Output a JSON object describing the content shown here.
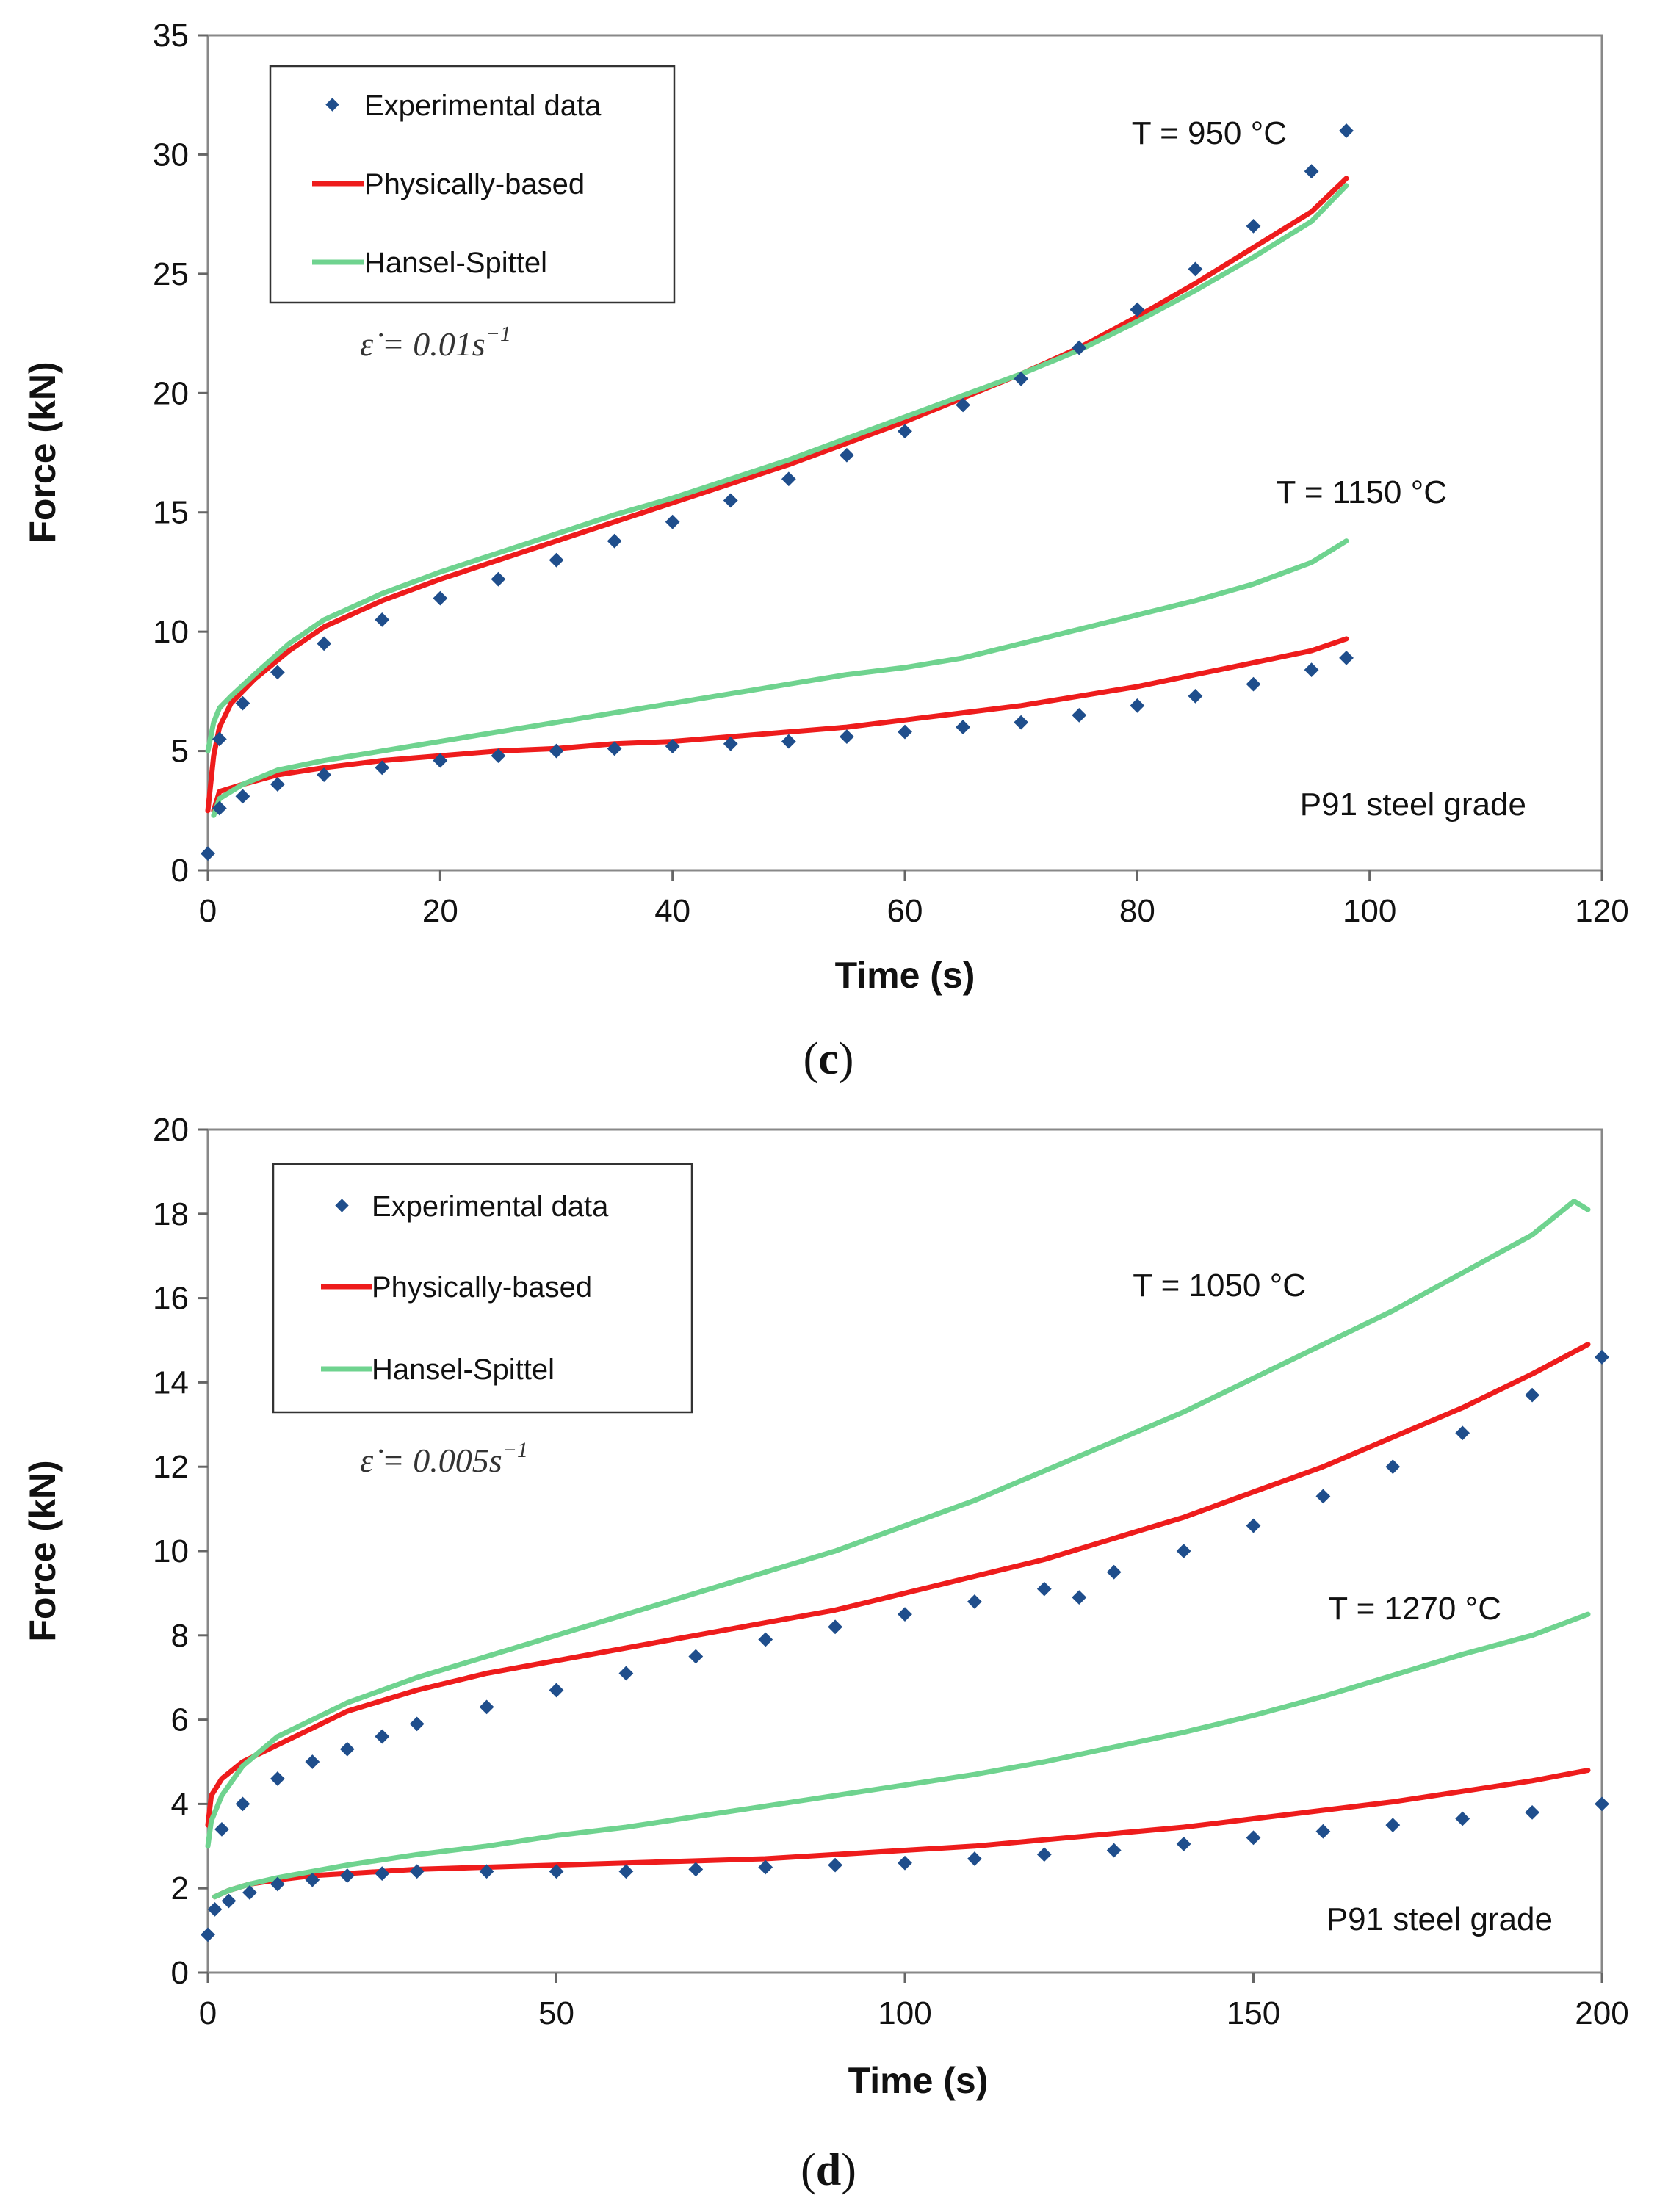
{
  "chart_data": [
    {
      "type": "scatter",
      "panel_label": "c",
      "xlabel": "Time (s)",
      "ylabel": "Force  (kN)",
      "xlim": [
        0,
        120
      ],
      "ylim": [
        0,
        35
      ],
      "xticks": [
        0,
        20,
        40,
        60,
        80,
        100,
        120
      ],
      "yticks": [
        0,
        5,
        10,
        15,
        20,
        25,
        30,
        35
      ],
      "grid": false,
      "legend_position": "top-left",
      "legend": [
        "Experimental data",
        "Physically-based",
        "Hansel-Spittel"
      ],
      "strain_rate": {
        "symbol": "ε̇",
        "value": "0.01",
        "unit": "s",
        "exponent": "−1"
      },
      "annotations": [
        {
          "text": "T  =  950 °C",
          "x": 93,
          "y": 30.8
        },
        {
          "text": "T  =  1150 °C",
          "x": 115,
          "y": 15.8
        },
        {
          "text": "P91  steel  grade",
          "x": 112,
          "y": 2.5
        }
      ],
      "series": [
        {
          "name": "Experimental data",
          "group": "T = 950 °C",
          "style": "markers",
          "color": "#1f4e8c",
          "x": [
            0,
            1,
            3,
            6,
            10,
            15,
            20,
            25,
            30,
            35,
            40,
            45,
            50,
            55,
            60,
            65,
            70,
            75,
            80,
            85,
            90,
            95,
            98
          ],
          "y": [
            0.7,
            5.5,
            7.0,
            8.3,
            9.5,
            10.5,
            11.4,
            12.2,
            13.0,
            13.8,
            14.6,
            15.5,
            16.4,
            17.4,
            18.4,
            19.5,
            20.6,
            21.9,
            23.5,
            25.2,
            27.0,
            29.3,
            31.0
          ]
        },
        {
          "name": "Physically-based",
          "group": "T = 950 °C",
          "style": "line",
          "color": "#ee1c1c",
          "x": [
            0,
            0.5,
            1,
            2,
            4,
            7,
            10,
            15,
            20,
            25,
            30,
            35,
            40,
            45,
            50,
            55,
            60,
            65,
            70,
            75,
            80,
            85,
            90,
            95,
            98
          ],
          "y": [
            2.5,
            4.8,
            6.0,
            7.0,
            8.0,
            9.2,
            10.2,
            11.3,
            12.2,
            13.0,
            13.8,
            14.6,
            15.4,
            16.2,
            17.0,
            17.9,
            18.8,
            19.8,
            20.8,
            21.9,
            23.2,
            24.6,
            26.1,
            27.6,
            29.0
          ]
        },
        {
          "name": "Hansel-Spittel",
          "group": "T = 950 °C",
          "style": "line",
          "color": "#6fd38f",
          "x": [
            0,
            0.5,
            1,
            2,
            4,
            7,
            10,
            15,
            20,
            25,
            30,
            35,
            40,
            45,
            50,
            55,
            60,
            65,
            70,
            75,
            80,
            85,
            90,
            95,
            98
          ],
          "y": [
            5.0,
            6.2,
            6.8,
            7.3,
            8.2,
            9.5,
            10.5,
            11.6,
            12.5,
            13.3,
            14.1,
            14.9,
            15.6,
            16.4,
            17.2,
            18.1,
            19.0,
            19.9,
            20.8,
            21.8,
            23.0,
            24.3,
            25.7,
            27.2,
            28.7
          ]
        },
        {
          "name": "Experimental data",
          "group": "T = 1150 °C",
          "style": "markers",
          "color": "#1f4e8c",
          "x": [
            1,
            3,
            6,
            10,
            15,
            20,
            25,
            30,
            35,
            40,
            45,
            50,
            55,
            60,
            65,
            70,
            75,
            80,
            85,
            90,
            95,
            98
          ],
          "y": [
            2.6,
            3.1,
            3.6,
            4.0,
            4.3,
            4.6,
            4.8,
            5.0,
            5.1,
            5.2,
            5.3,
            5.4,
            5.6,
            5.8,
            6.0,
            6.2,
            6.5,
            6.9,
            7.3,
            7.8,
            8.4,
            8.9
          ]
        },
        {
          "name": "Physically-based",
          "group": "T = 1150 °C",
          "style": "line",
          "color": "#ee1c1c",
          "x": [
            0.5,
            1,
            3,
            6,
            10,
            15,
            20,
            25,
            30,
            35,
            40,
            45,
            50,
            55,
            60,
            65,
            70,
            75,
            80,
            85,
            90,
            95,
            98
          ],
          "y": [
            2.5,
            3.3,
            3.6,
            4.0,
            4.3,
            4.6,
            4.8,
            5.0,
            5.1,
            5.3,
            5.4,
            5.6,
            5.8,
            6.0,
            6.3,
            6.6,
            6.9,
            7.3,
            7.7,
            8.2,
            8.7,
            9.2,
            9.7
          ]
        },
        {
          "name": "Hansel-Spittel",
          "group": "T = 1150 °C",
          "style": "line",
          "color": "#6fd38f",
          "x": [
            0.5,
            1,
            3,
            6,
            10,
            15,
            20,
            25,
            30,
            35,
            40,
            45,
            50,
            55,
            60,
            65,
            70,
            75,
            80,
            85,
            90,
            95,
            98
          ],
          "y": [
            2.3,
            3.0,
            3.6,
            4.2,
            4.6,
            5.0,
            5.4,
            5.8,
            6.2,
            6.6,
            7.0,
            7.4,
            7.8,
            8.2,
            8.5,
            8.9,
            9.5,
            10.1,
            10.7,
            11.3,
            12.0,
            12.9,
            13.8
          ]
        }
      ]
    },
    {
      "type": "scatter",
      "panel_label": "d",
      "xlabel": "Time (s)",
      "ylabel": "Force  (kN)",
      "xlim": [
        0,
        200
      ],
      "ylim": [
        0,
        20
      ],
      "xticks": [
        0,
        50,
        100,
        150,
        200
      ],
      "yticks": [
        0,
        2,
        4,
        6,
        8,
        10,
        12,
        14,
        16,
        18,
        20
      ],
      "grid": false,
      "legend_position": "top-left",
      "legend": [
        "Experimental data",
        "Physically-based",
        "Hansel-Spittel"
      ],
      "strain_rate": {
        "symbol": "ε̇",
        "value": "0.005",
        "unit": "s",
        "exponent": "−1"
      },
      "annotations": [
        {
          "text": "T  =  1050 °C",
          "x": 162,
          "y": 16.2
        },
        {
          "text": "T  =  1270 °C",
          "x": 183,
          "y": 8.4
        },
        {
          "text": "P91  steel  grade",
          "x": 199,
          "y": 1.1
        }
      ],
      "series": [
        {
          "name": "Experimental data",
          "group": "T = 1050 °C",
          "style": "markers",
          "color": "#1f4e8c",
          "x": [
            0,
            2,
            5,
            10,
            15,
            20,
            25,
            30,
            40,
            50,
            60,
            70,
            80,
            90,
            100,
            110,
            120,
            125,
            130,
            140,
            150,
            160,
            170,
            180,
            190,
            200
          ],
          "y": [
            0.9,
            3.4,
            4.0,
            4.6,
            5.0,
            5.3,
            5.6,
            5.9,
            6.3,
            6.7,
            7.1,
            7.5,
            7.9,
            8.2,
            8.5,
            8.8,
            9.1,
            8.9,
            9.5,
            10.0,
            10.6,
            11.3,
            12.0,
            12.8,
            13.7,
            14.6
          ]
        },
        {
          "name": "Physically-based",
          "group": "T = 1050 °C",
          "style": "line",
          "color": "#ee1c1c",
          "x": [
            0,
            0.5,
            2,
            5,
            10,
            15,
            20,
            30,
            40,
            50,
            60,
            70,
            80,
            90,
            100,
            110,
            120,
            130,
            140,
            150,
            160,
            170,
            180,
            190,
            198
          ],
          "y": [
            3.5,
            4.2,
            4.6,
            5.0,
            5.4,
            5.8,
            6.2,
            6.7,
            7.1,
            7.4,
            7.7,
            8.0,
            8.3,
            8.6,
            9.0,
            9.4,
            9.8,
            10.3,
            10.8,
            11.4,
            12.0,
            12.7,
            13.4,
            14.2,
            14.9
          ]
        },
        {
          "name": "Hansel-Spittel",
          "group": "T = 1050 °C",
          "style": "line",
          "color": "#6fd38f",
          "x": [
            0,
            0.5,
            2,
            5,
            10,
            15,
            20,
            30,
            40,
            50,
            60,
            70,
            80,
            90,
            100,
            110,
            120,
            130,
            140,
            150,
            160,
            170,
            180,
            190,
            196,
            198
          ],
          "y": [
            3.0,
            3.6,
            4.2,
            4.9,
            5.6,
            6.0,
            6.4,
            7.0,
            7.5,
            8.0,
            8.5,
            9.0,
            9.5,
            10.0,
            10.6,
            11.2,
            11.9,
            12.6,
            13.3,
            14.1,
            14.9,
            15.7,
            16.6,
            17.5,
            18.3,
            18.1
          ]
        },
        {
          "name": "Experimental data",
          "group": "T = 1270 °C",
          "style": "markers",
          "color": "#1f4e8c",
          "x": [
            1,
            3,
            6,
            10,
            15,
            20,
            25,
            30,
            40,
            50,
            60,
            70,
            80,
            90,
            100,
            110,
            120,
            130,
            140,
            150,
            160,
            170,
            180,
            190,
            200
          ],
          "y": [
            1.5,
            1.7,
            1.9,
            2.1,
            2.2,
            2.3,
            2.35,
            2.4,
            2.4,
            2.4,
            2.4,
            2.45,
            2.5,
            2.55,
            2.6,
            2.7,
            2.8,
            2.9,
            3.05,
            3.2,
            3.35,
            3.5,
            3.65,
            3.8,
            4.0
          ]
        },
        {
          "name": "Physically-based",
          "group": "T = 1270 °C",
          "style": "line",
          "color": "#ee1c1c",
          "x": [
            1,
            3,
            6,
            10,
            15,
            20,
            30,
            40,
            50,
            60,
            70,
            80,
            90,
            100,
            110,
            120,
            130,
            140,
            150,
            160,
            170,
            180,
            190,
            198
          ],
          "y": [
            1.8,
            1.95,
            2.1,
            2.2,
            2.3,
            2.35,
            2.45,
            2.5,
            2.55,
            2.6,
            2.65,
            2.7,
            2.8,
            2.9,
            3.0,
            3.15,
            3.3,
            3.45,
            3.65,
            3.85,
            4.05,
            4.3,
            4.55,
            4.8
          ]
        },
        {
          "name": "Hansel-Spittel",
          "group": "T = 1270 °C",
          "style": "line",
          "color": "#6fd38f",
          "x": [
            1,
            3,
            6,
            10,
            15,
            20,
            30,
            40,
            50,
            60,
            70,
            80,
            90,
            100,
            110,
            120,
            130,
            140,
            150,
            160,
            170,
            180,
            190,
            198
          ],
          "y": [
            1.8,
            1.95,
            2.1,
            2.25,
            2.4,
            2.55,
            2.8,
            3.0,
            3.25,
            3.45,
            3.7,
            3.95,
            4.2,
            4.45,
            4.7,
            5.0,
            5.35,
            5.7,
            6.1,
            6.55,
            7.05,
            7.55,
            8.0,
            8.5
          ]
        }
      ]
    }
  ]
}
